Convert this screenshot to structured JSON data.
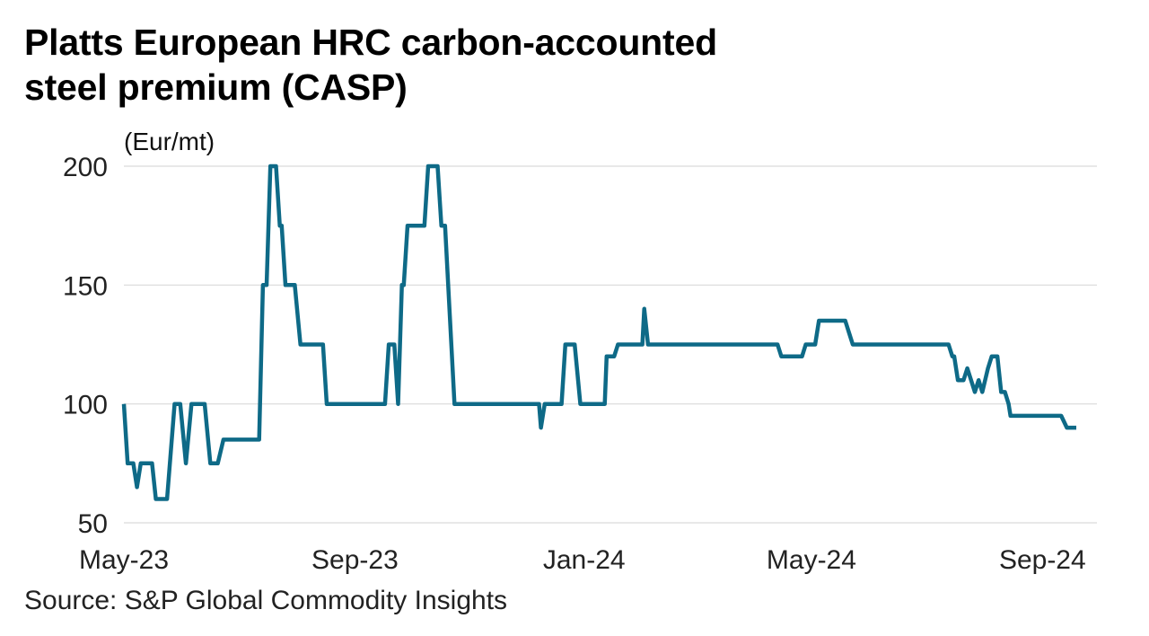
{
  "title_line1": "Platts European HRC carbon-accounted",
  "title_line2": "steel premium (CASP)",
  "unit": "(Eur/mt)",
  "source": "Source: S&P Global Commodity Insights",
  "colors": {
    "line": "#0e6a87",
    "grid": "#d9d9d9",
    "text": "#222222"
  },
  "chart_data": {
    "type": "line",
    "title": "Platts European HRC carbon-accounted steel premium (CASP)",
    "xlabel": "",
    "ylabel": "(Eur/mt)",
    "ylim": [
      50,
      200
    ],
    "yticks": [
      200,
      150,
      100,
      50
    ],
    "xlim": [
      "2023-05-01",
      "2024-09-30"
    ],
    "xticks": [
      {
        "label": "May-23",
        "date": "2023-05-01"
      },
      {
        "label": "Sep-23",
        "date": "2023-09-01"
      },
      {
        "label": "Jan-24",
        "date": "2024-01-01"
      },
      {
        "label": "May-24",
        "date": "2024-05-01"
      },
      {
        "label": "Sep-24",
        "date": "2024-09-01"
      }
    ],
    "grid": true,
    "series": [
      {
        "name": "CASP",
        "points": [
          [
            "2023-05-01",
            100
          ],
          [
            "2023-05-03",
            75
          ],
          [
            "2023-05-06",
            75
          ],
          [
            "2023-05-08",
            65
          ],
          [
            "2023-05-10",
            75
          ],
          [
            "2023-05-16",
            75
          ],
          [
            "2023-05-18",
            60
          ],
          [
            "2023-05-24",
            60
          ],
          [
            "2023-05-28",
            100
          ],
          [
            "2023-05-31",
            100
          ],
          [
            "2023-06-03",
            75
          ],
          [
            "2023-06-06",
            100
          ],
          [
            "2023-06-13",
            100
          ],
          [
            "2023-06-16",
            75
          ],
          [
            "2023-06-20",
            75
          ],
          [
            "2023-06-23",
            85
          ],
          [
            "2023-07-03",
            85
          ],
          [
            "2023-07-12",
            85
          ],
          [
            "2023-07-14",
            150
          ],
          [
            "2023-07-16",
            150
          ],
          [
            "2023-07-18",
            200
          ],
          [
            "2023-07-21",
            200
          ],
          [
            "2023-07-23",
            175
          ],
          [
            "2023-07-24",
            175
          ],
          [
            "2023-07-26",
            150
          ],
          [
            "2023-07-31",
            150
          ],
          [
            "2023-08-03",
            125
          ],
          [
            "2023-08-15",
            125
          ],
          [
            "2023-08-17",
            100
          ],
          [
            "2023-09-17",
            100
          ],
          [
            "2023-09-19",
            125
          ],
          [
            "2023-09-22",
            125
          ],
          [
            "2023-09-24",
            100
          ],
          [
            "2023-09-26",
            150
          ],
          [
            "2023-09-27",
            150
          ],
          [
            "2023-09-29",
            175
          ],
          [
            "2023-10-08",
            175
          ],
          [
            "2023-10-10",
            200
          ],
          [
            "2023-10-15",
            200
          ],
          [
            "2023-10-17",
            175
          ],
          [
            "2023-10-19",
            175
          ],
          [
            "2023-10-24",
            100
          ],
          [
            "2023-12-08",
            100
          ],
          [
            "2023-12-09",
            90
          ],
          [
            "2023-12-11",
            100
          ],
          [
            "2023-12-20",
            100
          ],
          [
            "2023-12-22",
            125
          ],
          [
            "2023-12-27",
            125
          ],
          [
            "2023-12-30",
            100
          ],
          [
            "2024-01-12",
            100
          ],
          [
            "2024-01-13",
            120
          ],
          [
            "2024-01-17",
            120
          ],
          [
            "2024-01-19",
            125
          ],
          [
            "2024-02-01",
            125
          ],
          [
            "2024-02-02",
            140
          ],
          [
            "2024-02-04",
            125
          ],
          [
            "2024-04-13",
            125
          ],
          [
            "2024-04-15",
            120
          ],
          [
            "2024-04-26",
            120
          ],
          [
            "2024-04-28",
            125
          ],
          [
            "2024-05-03",
            125
          ],
          [
            "2024-05-05",
            135
          ],
          [
            "2024-05-19",
            135
          ],
          [
            "2024-05-21",
            130
          ],
          [
            "2024-05-23",
            125
          ],
          [
            "2024-07-13",
            125
          ],
          [
            "2024-07-15",
            120
          ],
          [
            "2024-07-16",
            120
          ],
          [
            "2024-07-18",
            110
          ],
          [
            "2024-07-21",
            110
          ],
          [
            "2024-07-23",
            115
          ],
          [
            "2024-07-25",
            110
          ],
          [
            "2024-07-27",
            105
          ],
          [
            "2024-07-29",
            110
          ],
          [
            "2024-07-31",
            105
          ],
          [
            "2024-08-03",
            115
          ],
          [
            "2024-08-05",
            120
          ],
          [
            "2024-08-08",
            120
          ],
          [
            "2024-08-10",
            105
          ],
          [
            "2024-08-12",
            105
          ],
          [
            "2024-08-14",
            100
          ],
          [
            "2024-08-15",
            95
          ],
          [
            "2024-09-11",
            95
          ],
          [
            "2024-09-14",
            90
          ],
          [
            "2024-09-19",
            90
          ]
        ]
      }
    ]
  }
}
